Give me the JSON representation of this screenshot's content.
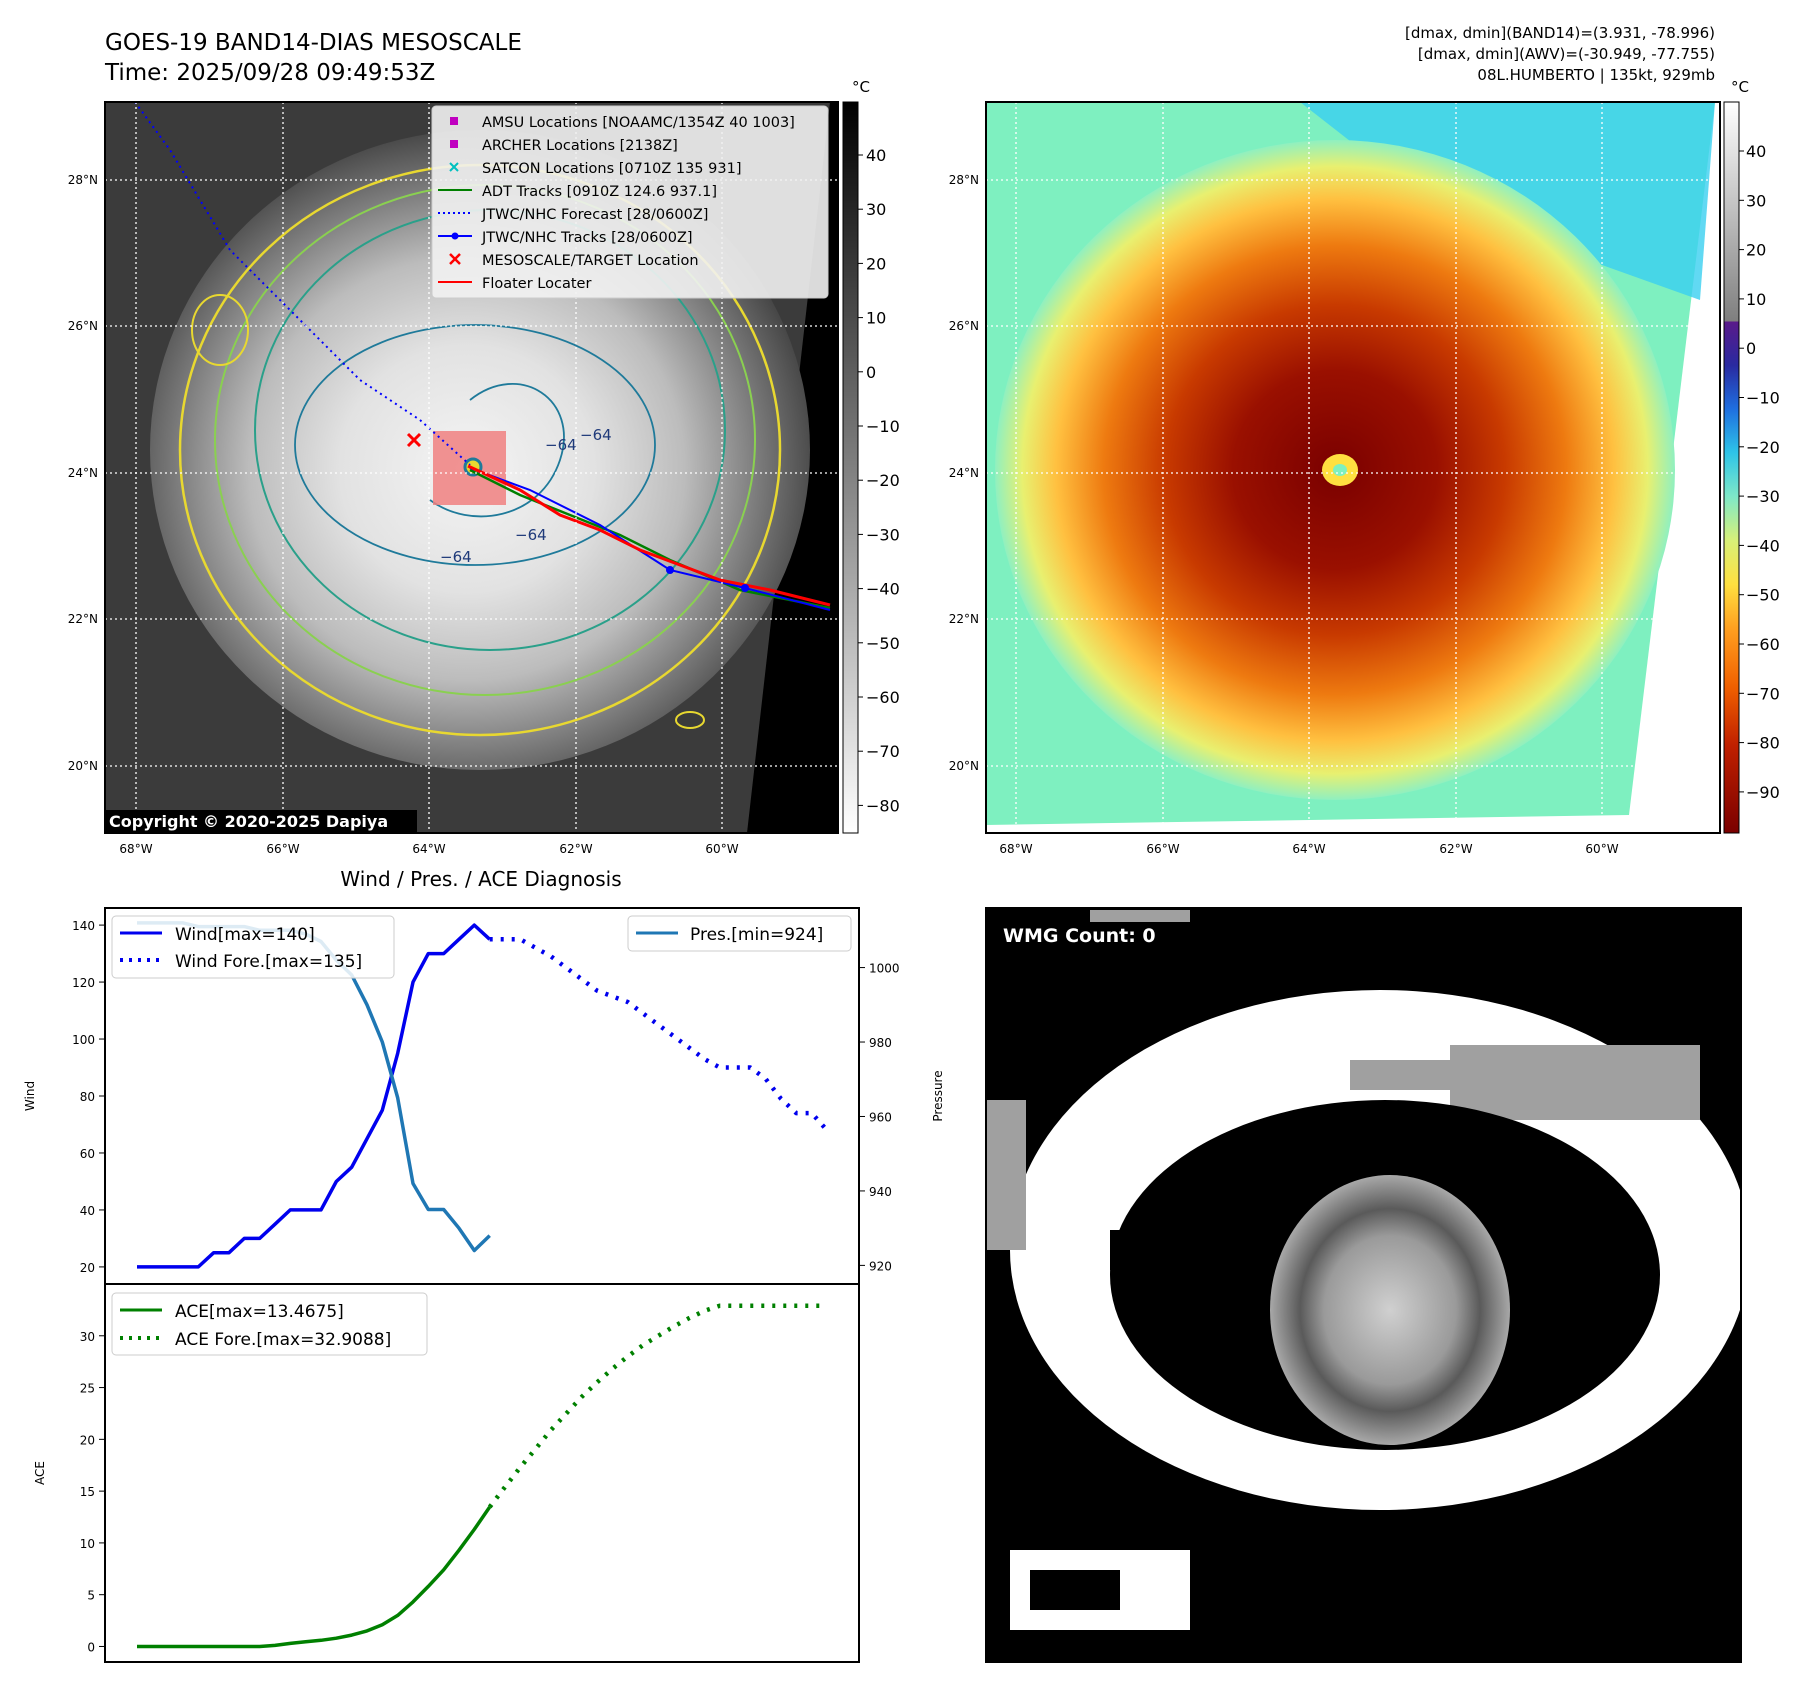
{
  "header": {
    "title_line1": "GOES-19 BAND14-DIAS MESOSCALE",
    "title_line2": "Time: 2025/09/28 09:49:53Z",
    "info_line1": "[dmax, dmin](BAND14)=(3.931, -78.996)",
    "info_line2": "[dmax, dmin](AWV)=(-30.949, -77.755)",
    "info_line3": "08L.HUMBERTO | 135kt, 929mb"
  },
  "maps": {
    "lon_labels": [
      "68°W",
      "66°W",
      "64°W",
      "62°W",
      "60°W"
    ],
    "lat_labels": [
      "28°N",
      "26°N",
      "24°N",
      "22°N",
      "20°N"
    ],
    "copyright": "Copyright © 2020-2025 Dapiya",
    "unit": "°C",
    "gray_colorbar_ticks": [
      "40",
      "30",
      "20",
      "10",
      "0",
      "−10",
      "−20",
      "−30",
      "−40",
      "−50",
      "−60",
      "−70",
      "−80"
    ],
    "color_colorbar_ticks": [
      "40",
      "30",
      "20",
      "10",
      "0",
      "−10",
      "−20",
      "−30",
      "−40",
      "−50",
      "−60",
      "−70",
      "−80",
      "−90"
    ],
    "contour_labels": [
      "−64",
      "−64",
      "−64",
      "−64"
    ],
    "legend": [
      {
        "label": "AMSU Locations [NOAAMC/1354Z 40 1003]",
        "color": "#c000c0"
      },
      {
        "label": "ARCHER Locations [2138Z]",
        "color": "#c000c0"
      },
      {
        "label": "SATCON Locations [0710Z 135 931]",
        "color": "#00c0c0"
      },
      {
        "label": "ADT Tracks [0910Z 124.6 937.1]",
        "color": "#008000"
      },
      {
        "label": "JTWC/NHC Forecast [28/0600Z]",
        "color": "#0000ff"
      },
      {
        "label": "JTWC/NHC Tracks [28/0600Z]",
        "color": "#0000ff"
      },
      {
        "label": "MESOSCALE/TARGET Location",
        "color": "#ff0000"
      },
      {
        "label": "Floater Locater",
        "color": "#ff0000"
      }
    ]
  },
  "wmg": {
    "label": "WMG Count: 0"
  },
  "chart_data": [
    {
      "type": "line",
      "title": "Wind / Pres. / ACE Diagnosis",
      "ylabel": "Wind",
      "y2label": "Pressure",
      "ylim": [
        14,
        146
      ],
      "y2lim": [
        915,
        1016
      ],
      "yticks": [
        20,
        40,
        60,
        80,
        100,
        120,
        140
      ],
      "y2ticks": [
        920,
        940,
        960,
        980,
        1000
      ],
      "legend_left": [
        "Wind[max=140]",
        "Wind Fore.[max=135]"
      ],
      "legend_right": [
        "Pres.[min=924]"
      ],
      "series": [
        {
          "name": "Wind[max=140]",
          "axis": "left",
          "color": "#0000ee",
          "style": "solid",
          "x": [
            0,
            1,
            2,
            3,
            4,
            5,
            6,
            7,
            8,
            9,
            10,
            11,
            12,
            13,
            14,
            15,
            16,
            17,
            18,
            19,
            20,
            21,
            22,
            23
          ],
          "values": [
            20,
            20,
            20,
            20,
            20,
            25,
            25,
            30,
            30,
            35,
            40,
            40,
            40,
            50,
            55,
            65,
            75,
            95,
            120,
            130,
            130,
            135,
            140,
            135
          ]
        },
        {
          "name": "Wind Fore.[max=135]",
          "axis": "left",
          "color": "#0000ee",
          "style": "dotted",
          "x": [
            23,
            24,
            25,
            26,
            27,
            28,
            29,
            30,
            31,
            32,
            33,
            34,
            35,
            36,
            37,
            38,
            39,
            40,
            41,
            42,
            43,
            44,
            45
          ],
          "values": [
            135,
            135,
            135,
            132,
            129,
            125,
            121,
            117,
            115,
            113,
            109,
            105,
            101,
            97,
            93,
            90,
            90,
            90,
            86,
            79,
            74,
            74,
            68
          ]
        },
        {
          "name": "Pres.[min=924]",
          "axis": "right",
          "color": "#1f77b4",
          "style": "solid",
          "x": [
            0,
            1,
            2,
            3,
            4,
            5,
            6,
            7,
            8,
            9,
            10,
            11,
            12,
            13,
            14,
            15,
            16,
            17,
            18,
            19,
            20,
            21,
            22,
            23
          ],
          "values": [
            1012,
            1012,
            1012,
            1012,
            1011,
            1011,
            1011,
            1011,
            1010,
            1010,
            1010,
            1009,
            1007,
            1002,
            998,
            990,
            980,
            965,
            942,
            935,
            935,
            930,
            924,
            928
          ]
        }
      ]
    },
    {
      "type": "line",
      "ylabel": "ACE",
      "ylim": [
        -1.5,
        35
      ],
      "yticks": [
        0,
        5,
        10,
        15,
        20,
        25,
        30
      ],
      "legend": [
        "ACE[max=13.4675]",
        "ACE Fore.[max=32.9088]"
      ],
      "series": [
        {
          "name": "ACE[max=13.4675]",
          "color": "#008000",
          "style": "solid",
          "x": [
            0,
            1,
            2,
            3,
            4,
            5,
            6,
            7,
            8,
            9,
            10,
            11,
            12,
            13,
            14,
            15,
            16,
            17,
            18,
            19,
            20,
            21,
            22,
            23
          ],
          "values": [
            0,
            0,
            0,
            0,
            0,
            0,
            0,
            0,
            0,
            0.1,
            0.3,
            0.45,
            0.6,
            0.8,
            1.1,
            1.5,
            2.1,
            3.0,
            4.3,
            5.8,
            7.4,
            9.3,
            11.3,
            13.4675
          ]
        },
        {
          "name": "ACE Fore.[max=32.9088]",
          "color": "#008000",
          "style": "dotted",
          "x": [
            23,
            24,
            25,
            26,
            27,
            28,
            29,
            30,
            31,
            32,
            33,
            34,
            35,
            36,
            37,
            38,
            39,
            40,
            41,
            42,
            43,
            44,
            45
          ],
          "values": [
            13.4675,
            15.4,
            17.3,
            19.1,
            20.9,
            22.5,
            24.1,
            25.5,
            26.8,
            28.0,
            29.1,
            30.0,
            30.9,
            31.7,
            32.4,
            32.9088,
            32.9088,
            32.9088,
            32.9088,
            32.9088,
            32.9088,
            32.9088,
            32.9088
          ]
        }
      ]
    }
  ]
}
